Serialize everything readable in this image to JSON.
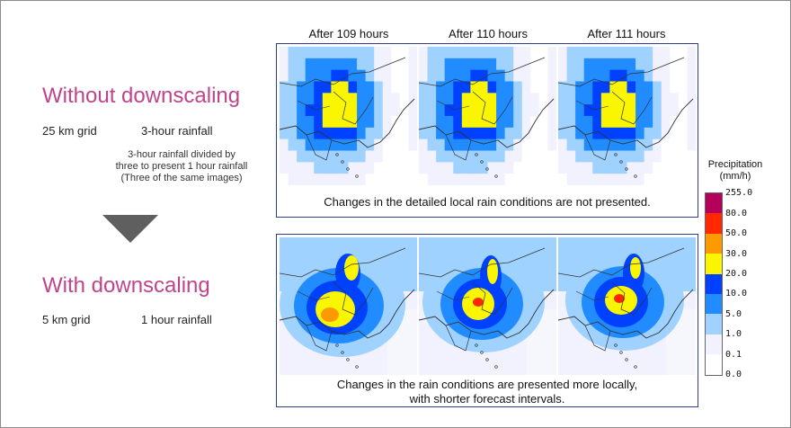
{
  "left": {
    "without_title": "Without downscaling",
    "without_grid": "25 km grid",
    "without_rain": "3-hour rainfall",
    "note_lines": [
      "3-hour rainfall divided by",
      "three to present 1 hour rainfall",
      "(Three of the same images)"
    ],
    "with_title": "With downscaling",
    "with_grid": "5 km grid",
    "with_rain": "1 hour rainfall"
  },
  "hours": [
    "After 109 hours",
    "After 110 hours",
    "After 111 hours"
  ],
  "captions": {
    "top": "Changes in the detailed local rain conditions are not presented.",
    "bottom_lines": [
      "Changes in the rain conditions are presented more locally,",
      "with shorter forecast intervals."
    ]
  },
  "legend": {
    "title_lines": [
      "Precipitation",
      "(mm/h)"
    ],
    "levels": [
      "255.0",
      "80.0",
      "50.0",
      "30.0",
      "20.0",
      "10.0",
      "5.0",
      "1.0",
      "0.1",
      "0.0"
    ],
    "colors": [
      "#b4005a",
      "#ff2800",
      "#ff9900",
      "#faf500",
      "#0041ff",
      "#218cff",
      "#a0d2ff",
      "#f2f2ff",
      "#ffffff"
    ]
  },
  "colors": {
    "title_accent": "#c0448a",
    "panel_border": "#2e3d8f",
    "arrow": "#5f5f5f"
  }
}
